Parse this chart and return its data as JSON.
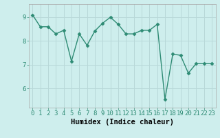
{
  "x": [
    0,
    1,
    2,
    3,
    4,
    5,
    6,
    7,
    8,
    9,
    10,
    11,
    12,
    13,
    14,
    15,
    16,
    17,
    18,
    19,
    20,
    21,
    22,
    23
  ],
  "y": [
    9.1,
    8.6,
    8.6,
    8.3,
    8.45,
    7.15,
    8.3,
    7.82,
    8.42,
    8.75,
    9.0,
    8.7,
    8.3,
    8.3,
    8.45,
    8.45,
    8.7,
    5.55,
    7.45,
    7.4,
    6.65,
    7.05,
    7.05,
    7.05
  ],
  "line_color": "#2e8b74",
  "marker": "D",
  "markersize": 2.5,
  "linewidth": 1.0,
  "xlabel": "Humidex (Indice chaleur)",
  "ylim": [
    5.2,
    9.55
  ],
  "xlim": [
    -0.5,
    23.5
  ],
  "yticks": [
    6,
    7,
    8,
    9
  ],
  "xticks": [
    0,
    1,
    2,
    3,
    4,
    5,
    6,
    7,
    8,
    9,
    10,
    11,
    12,
    13,
    14,
    15,
    16,
    17,
    18,
    19,
    20,
    21,
    22,
    23
  ],
  "bg_color": "#ceeeed",
  "grid_color": "#b8d8d8",
  "label_fontsize": 7.5,
  "tick_fontsize": 6.5
}
